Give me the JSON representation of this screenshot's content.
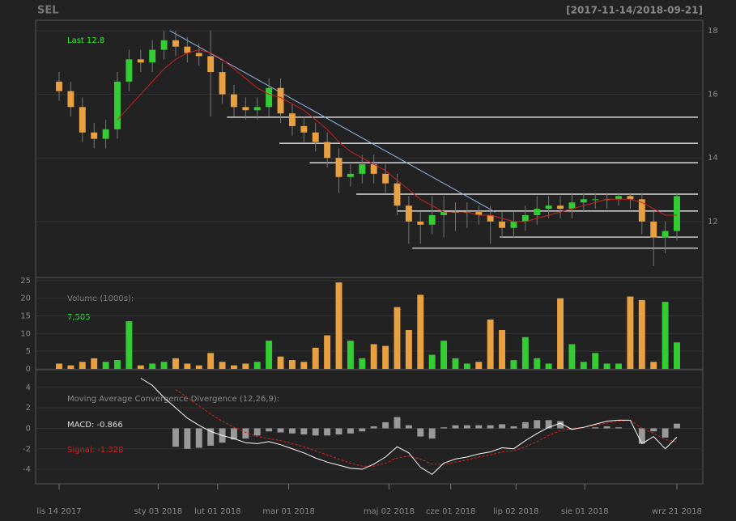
{
  "chart_data": {
    "type": "candlestick",
    "title": "SEL",
    "subtitle": "[2017-11-14/2018-09-21]",
    "up_color": "#33cc33",
    "down_color": "#e8a040",
    "xlim": [
      0,
      53
    ],
    "xticks": [
      {
        "value": 0,
        "label": "lis 14 2017"
      },
      {
        "value": 8.5,
        "label": "sty 03 2018"
      },
      {
        "value": 13.6,
        "label": "lut 01 2018"
      },
      {
        "value": 19.7,
        "label": "mar 01 2018"
      },
      {
        "value": 28.3,
        "label": "maj 02 2018"
      },
      {
        "value": 33.6,
        "label": "cze 01 2018"
      },
      {
        "value": 39.2,
        "label": "lip 02 2018"
      },
      {
        "value": 45.1,
        "label": "sie 01 2018"
      },
      {
        "value": 53,
        "label": "wrz 21 2018"
      }
    ],
    "price": {
      "ylim": [
        10.24,
        18.33
      ],
      "yticks": [
        12,
        14,
        16,
        18
      ],
      "last_label": "Last 12.8",
      "open": [
        16.4,
        16.1,
        15.6,
        14.8,
        14.6,
        14.9,
        16.4,
        17.1,
        17.0,
        17.4,
        17.7,
        17.5,
        17.3,
        17.2,
        16.7,
        16.0,
        15.6,
        15.5,
        15.6,
        16.2,
        15.4,
        15.0,
        14.8,
        14.5,
        14.0,
        13.4,
        13.5,
        13.8,
        13.5,
        13.2,
        12.5,
        12.0,
        11.9,
        12.2,
        12.3,
        12.3,
        12.3,
        12.2,
        12.0,
        11.8,
        12.0,
        12.2,
        12.4,
        12.5,
        12.4,
        12.6,
        12.7,
        12.7,
        12.7,
        12.8,
        12.7,
        12.0,
        11.5,
        11.7
      ],
      "high": [
        16.7,
        16.4,
        15.9,
        15.1,
        15.2,
        16.7,
        17.4,
        17.4,
        17.7,
        18.0,
        18.0,
        17.8,
        17.6,
        18.0,
        17.0,
        16.3,
        15.9,
        15.9,
        16.5,
        16.5,
        15.7,
        15.3,
        15.1,
        14.8,
        14.3,
        13.8,
        14.1,
        14.1,
        13.8,
        13.5,
        12.8,
        12.3,
        12.8,
        12.8,
        12.6,
        12.6,
        12.5,
        12.5,
        12.3,
        12.3,
        12.5,
        12.8,
        12.8,
        12.8,
        12.9,
        12.9,
        12.9,
        12.9,
        12.9,
        12.9,
        12.9,
        12.3,
        12.0,
        12.9
      ],
      "low": [
        15.8,
        15.3,
        14.5,
        14.3,
        14.3,
        14.6,
        16.1,
        16.7,
        16.7,
        17.1,
        17.2,
        17.0,
        16.9,
        15.3,
        15.7,
        15.3,
        15.2,
        15.2,
        15.3,
        15.1,
        14.7,
        14.5,
        14.2,
        13.7,
        12.9,
        13.1,
        13.2,
        13.2,
        12.9,
        12.2,
        11.3,
        11.3,
        11.6,
        11.5,
        11.7,
        11.8,
        11.9,
        11.3,
        11.5,
        11.5,
        11.7,
        11.9,
        12.1,
        12.1,
        12.1,
        12.3,
        12.4,
        12.4,
        12.5,
        12.4,
        11.6,
        10.6,
        11.0,
        11.4
      ],
      "close": [
        16.1,
        15.6,
        14.8,
        14.6,
        14.9,
        16.4,
        17.1,
        17.0,
        17.4,
        17.7,
        17.5,
        17.3,
        17.2,
        16.7,
        16.0,
        15.6,
        15.5,
        15.6,
        16.2,
        15.4,
        15.0,
        14.8,
        14.5,
        14.0,
        13.4,
        13.5,
        13.8,
        13.5,
        13.2,
        12.5,
        12.0,
        11.9,
        12.2,
        12.3,
        12.3,
        12.3,
        12.2,
        12.0,
        11.8,
        12.0,
        12.2,
        12.4,
        12.5,
        12.4,
        12.6,
        12.7,
        12.7,
        12.7,
        12.8,
        12.7,
        12.0,
        11.5,
        11.7,
        12.8
      ],
      "ma": {
        "color": "#cc2222",
        "values": [
          null,
          null,
          null,
          null,
          null,
          15.2,
          15.6,
          16.0,
          16.4,
          16.8,
          17.1,
          17.3,
          17.4,
          17.3,
          17.1,
          16.8,
          16.5,
          16.2,
          16.0,
          15.9,
          15.7,
          15.5,
          15.2,
          14.9,
          14.5,
          14.2,
          14.0,
          13.8,
          13.6,
          13.3,
          13.0,
          12.7,
          12.5,
          12.3,
          12.3,
          12.3,
          12.2,
          12.2,
          12.1,
          12.0,
          12.0,
          12.1,
          12.2,
          12.3,
          12.4,
          12.5,
          12.6,
          12.7,
          12.7,
          12.7,
          12.6,
          12.4,
          12.2,
          12.2
        ]
      },
      "trendline": {
        "color": "#8fb8e8",
        "x": [
          9.5,
          37.4
        ],
        "y": [
          18,
          12.3
        ]
      },
      "level_color": "#ffffff",
      "levels": [
        {
          "from": 14.4,
          "value": 15.28
        },
        {
          "from": 18.9,
          "value": 14.46
        },
        {
          "from": 21.5,
          "value": 13.85
        },
        {
          "from": 25.5,
          "value": 12.86
        },
        {
          "from": 29,
          "value": 12.33
        },
        {
          "from": 37.8,
          "value": 11.51
        },
        {
          "from": 30.3,
          "value": 11.16
        }
      ]
    },
    "volume": {
      "label": "Volume (1000s):",
      "last_label": "7,505",
      "ylim": [
        -0.23,
        25.9
      ],
      "yticks": [
        0,
        5,
        10,
        15,
        20,
        25
      ],
      "values": [
        1.5,
        1,
        2,
        3,
        2,
        2.5,
        13.5,
        1,
        1.5,
        2,
        3,
        1.5,
        1,
        4.5,
        2,
        1,
        1.5,
        2,
        8,
        3.5,
        2.5,
        2,
        6,
        9.5,
        24.5,
        8,
        3,
        7,
        6.5,
        17.5,
        11,
        21,
        4,
        8,
        3,
        1.5,
        2,
        14,
        11,
        2.5,
        9,
        3,
        1.5,
        20,
        7,
        2,
        4.5,
        1.5,
        1.5,
        20.5,
        19.5,
        2,
        19,
        7.5
      ]
    },
    "macd": {
      "title": "Moving Average Convergence Divergence (12,26,9):",
      "macd_label": "MACD: -0.866",
      "signal_label": "Signal: -1.328",
      "ylim": [
        -5.42,
        5.73
      ],
      "yticks": [
        -4,
        -2,
        0,
        2,
        4
      ],
      "macd": {
        "color": "#ffffff",
        "values": [
          null,
          null,
          null,
          null,
          null,
          null,
          null,
          4.9,
          4.2,
          3.0,
          2.0,
          1.0,
          0.3,
          -0.3,
          -0.7,
          -1.0,
          -1.4,
          -1.5,
          -1.3,
          -1.6,
          -2.0,
          -2.4,
          -2.9,
          -3.3,
          -3.6,
          -3.9,
          -4.0,
          -3.5,
          -2.8,
          -1.8,
          -2.4,
          -3.8,
          -4.5,
          -3.4,
          -3.0,
          -2.8,
          -2.5,
          -2.3,
          -1.9,
          -2.0,
          -1.2,
          -0.5,
          0.1,
          0.5,
          -0.1,
          0.1,
          0.4,
          0.7,
          0.8,
          0.8,
          -1.5,
          -0.8,
          -2.0,
          -0.866
        ]
      },
      "signal": {
        "color": "#dd2222",
        "values": [
          null,
          null,
          null,
          null,
          null,
          null,
          null,
          null,
          null,
          null,
          3.8,
          3.0,
          2.2,
          1.4,
          0.7,
          0.1,
          -0.4,
          -0.8,
          -1.0,
          -1.2,
          -1.5,
          -1.8,
          -2.2,
          -2.6,
          -3.0,
          -3.4,
          -3.7,
          -3.7,
          -3.4,
          -2.9,
          -2.7,
          -3.0,
          -3.5,
          -3.5,
          -3.3,
          -3.1,
          -2.8,
          -2.6,
          -2.3,
          -2.2,
          -1.8,
          -1.3,
          -0.7,
          -0.2,
          0.0,
          0.1,
          0.3,
          0.5,
          0.7,
          0.8,
          0.0,
          -0.5,
          -1.1,
          -1.328
        ]
      },
      "histogram": {
        "color": "#999999",
        "values": [
          null,
          null,
          null,
          null,
          null,
          null,
          null,
          null,
          null,
          null,
          -1.8,
          -2.0,
          -1.9,
          -1.7,
          -1.4,
          -1.1,
          -1.0,
          -0.7,
          -0.3,
          -0.4,
          -0.5,
          -0.6,
          -0.7,
          -0.7,
          -0.6,
          -0.5,
          -0.3,
          0.2,
          0.6,
          1.1,
          0.3,
          -0.8,
          -1.0,
          0.1,
          0.3,
          0.3,
          0.3,
          0.3,
          0.4,
          0.2,
          0.6,
          0.8,
          0.8,
          0.7,
          -0.1,
          0,
          0.1,
          0.2,
          0.1,
          0,
          -1.5,
          -0.3,
          -0.9,
          0.46
        ]
      }
    }
  }
}
